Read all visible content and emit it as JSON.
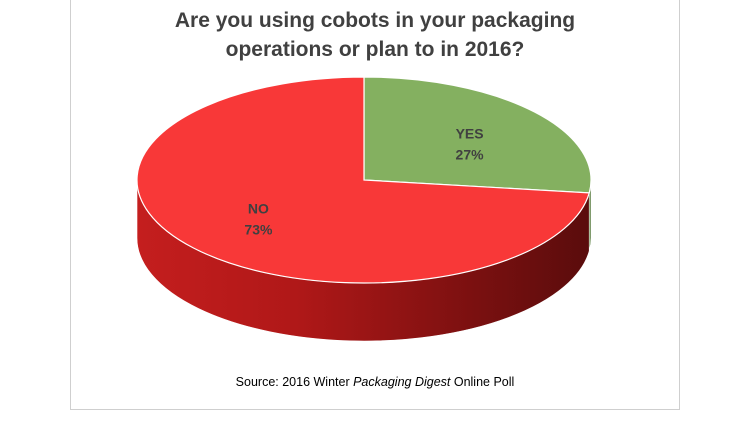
{
  "chart_data": {
    "type": "pie",
    "title_lines": [
      "Are you using cobots in your packaging",
      "operations or plan to in 2016?"
    ],
    "slices": [
      {
        "label": "YES",
        "value": 27,
        "value_label": "27%",
        "color": "#84b060"
      },
      {
        "label": "NO",
        "value": 73,
        "value_label": "73%",
        "color": "#f83838"
      }
    ],
    "three_d": true,
    "legend": "none"
  },
  "source": {
    "prefix": "Source: 2016 Winter ",
    "italic": "Packaging Digest",
    "suffix": " Online Poll"
  }
}
